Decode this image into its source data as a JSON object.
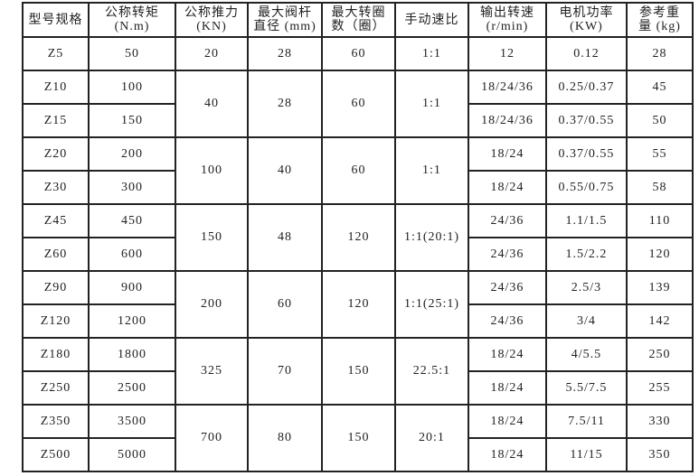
{
  "headers": [
    [
      "型号规格"
    ],
    [
      "公称转矩",
      "(N.m)"
    ],
    [
      "公称推力",
      "(KN)"
    ],
    [
      "最大阀杆",
      "直径 (mm)"
    ],
    [
      "最大转圈",
      "数（圈）"
    ],
    [
      "手动速比"
    ],
    [
      "输出转速",
      "(r/min)"
    ],
    [
      "电机功率",
      "(KW)"
    ],
    [
      "参考重",
      "量 (kg)"
    ]
  ],
  "groups": [
    {
      "thrust": "20",
      "stem": "28",
      "turns": "60",
      "ratio": "1:1",
      "rows": [
        {
          "model": "Z5",
          "torque": "50",
          "speed": "12",
          "power": "0.12",
          "weight": "28"
        }
      ]
    },
    {
      "thrust": "40",
      "stem": "28",
      "turns": "60",
      "ratio": "1:1",
      "rows": [
        {
          "model": "Z10",
          "torque": "100",
          "speed": "18/24/36",
          "power": "0.25/0.37",
          "weight": "45"
        },
        {
          "model": "Z15",
          "torque": "150",
          "speed": "18/24/36",
          "power": "0.37/0.55",
          "weight": "50"
        }
      ]
    },
    {
      "thrust": "100",
      "stem": "40",
      "turns": "60",
      "ratio": "1:1",
      "rows": [
        {
          "model": "Z20",
          "torque": "200",
          "speed": "18/24",
          "power": "0.37/0.55",
          "weight": "55"
        },
        {
          "model": "Z30",
          "torque": "300",
          "speed": "18/24",
          "power": "0.55/0.75",
          "weight": "58"
        }
      ]
    },
    {
      "thrust": "150",
      "stem": "48",
      "turns": "120",
      "ratio": "1:1(20:1)",
      "rows": [
        {
          "model": "Z45",
          "torque": "450",
          "speed": "24/36",
          "power": "1.1/1.5",
          "weight": "110"
        },
        {
          "model": "Z60",
          "torque": "600",
          "speed": "24/36",
          "power": "1.5/2.2",
          "weight": "120"
        }
      ]
    },
    {
      "thrust": "200",
      "stem": "60",
      "turns": "120",
      "ratio": "1:1(25:1)",
      "rows": [
        {
          "model": "Z90",
          "torque": "900",
          "speed": "24/36",
          "power": "2.5/3",
          "weight": "139"
        },
        {
          "model": "Z120",
          "torque": "1200",
          "speed": "24/36",
          "power": "3/4",
          "weight": "142"
        }
      ]
    },
    {
      "thrust": "325",
      "stem": "70",
      "turns": "150",
      "ratio": "22.5:1",
      "rows": [
        {
          "model": "Z180",
          "torque": "1800",
          "speed": "18/24",
          "power": "4/5.5",
          "weight": "250"
        },
        {
          "model": "Z250",
          "torque": "2500",
          "speed": "18/24",
          "power": "5.5/7.5",
          "weight": "255"
        }
      ]
    },
    {
      "thrust": "700",
      "stem": "80",
      "turns": "150",
      "ratio": "20:1",
      "rows": [
        {
          "model": "Z350",
          "torque": "3500",
          "speed": "18/24",
          "power": "7.5/11",
          "weight": "330"
        },
        {
          "model": "Z500",
          "torque": "5000",
          "speed": "18/24",
          "power": "11/15",
          "weight": "350"
        }
      ]
    }
  ]
}
